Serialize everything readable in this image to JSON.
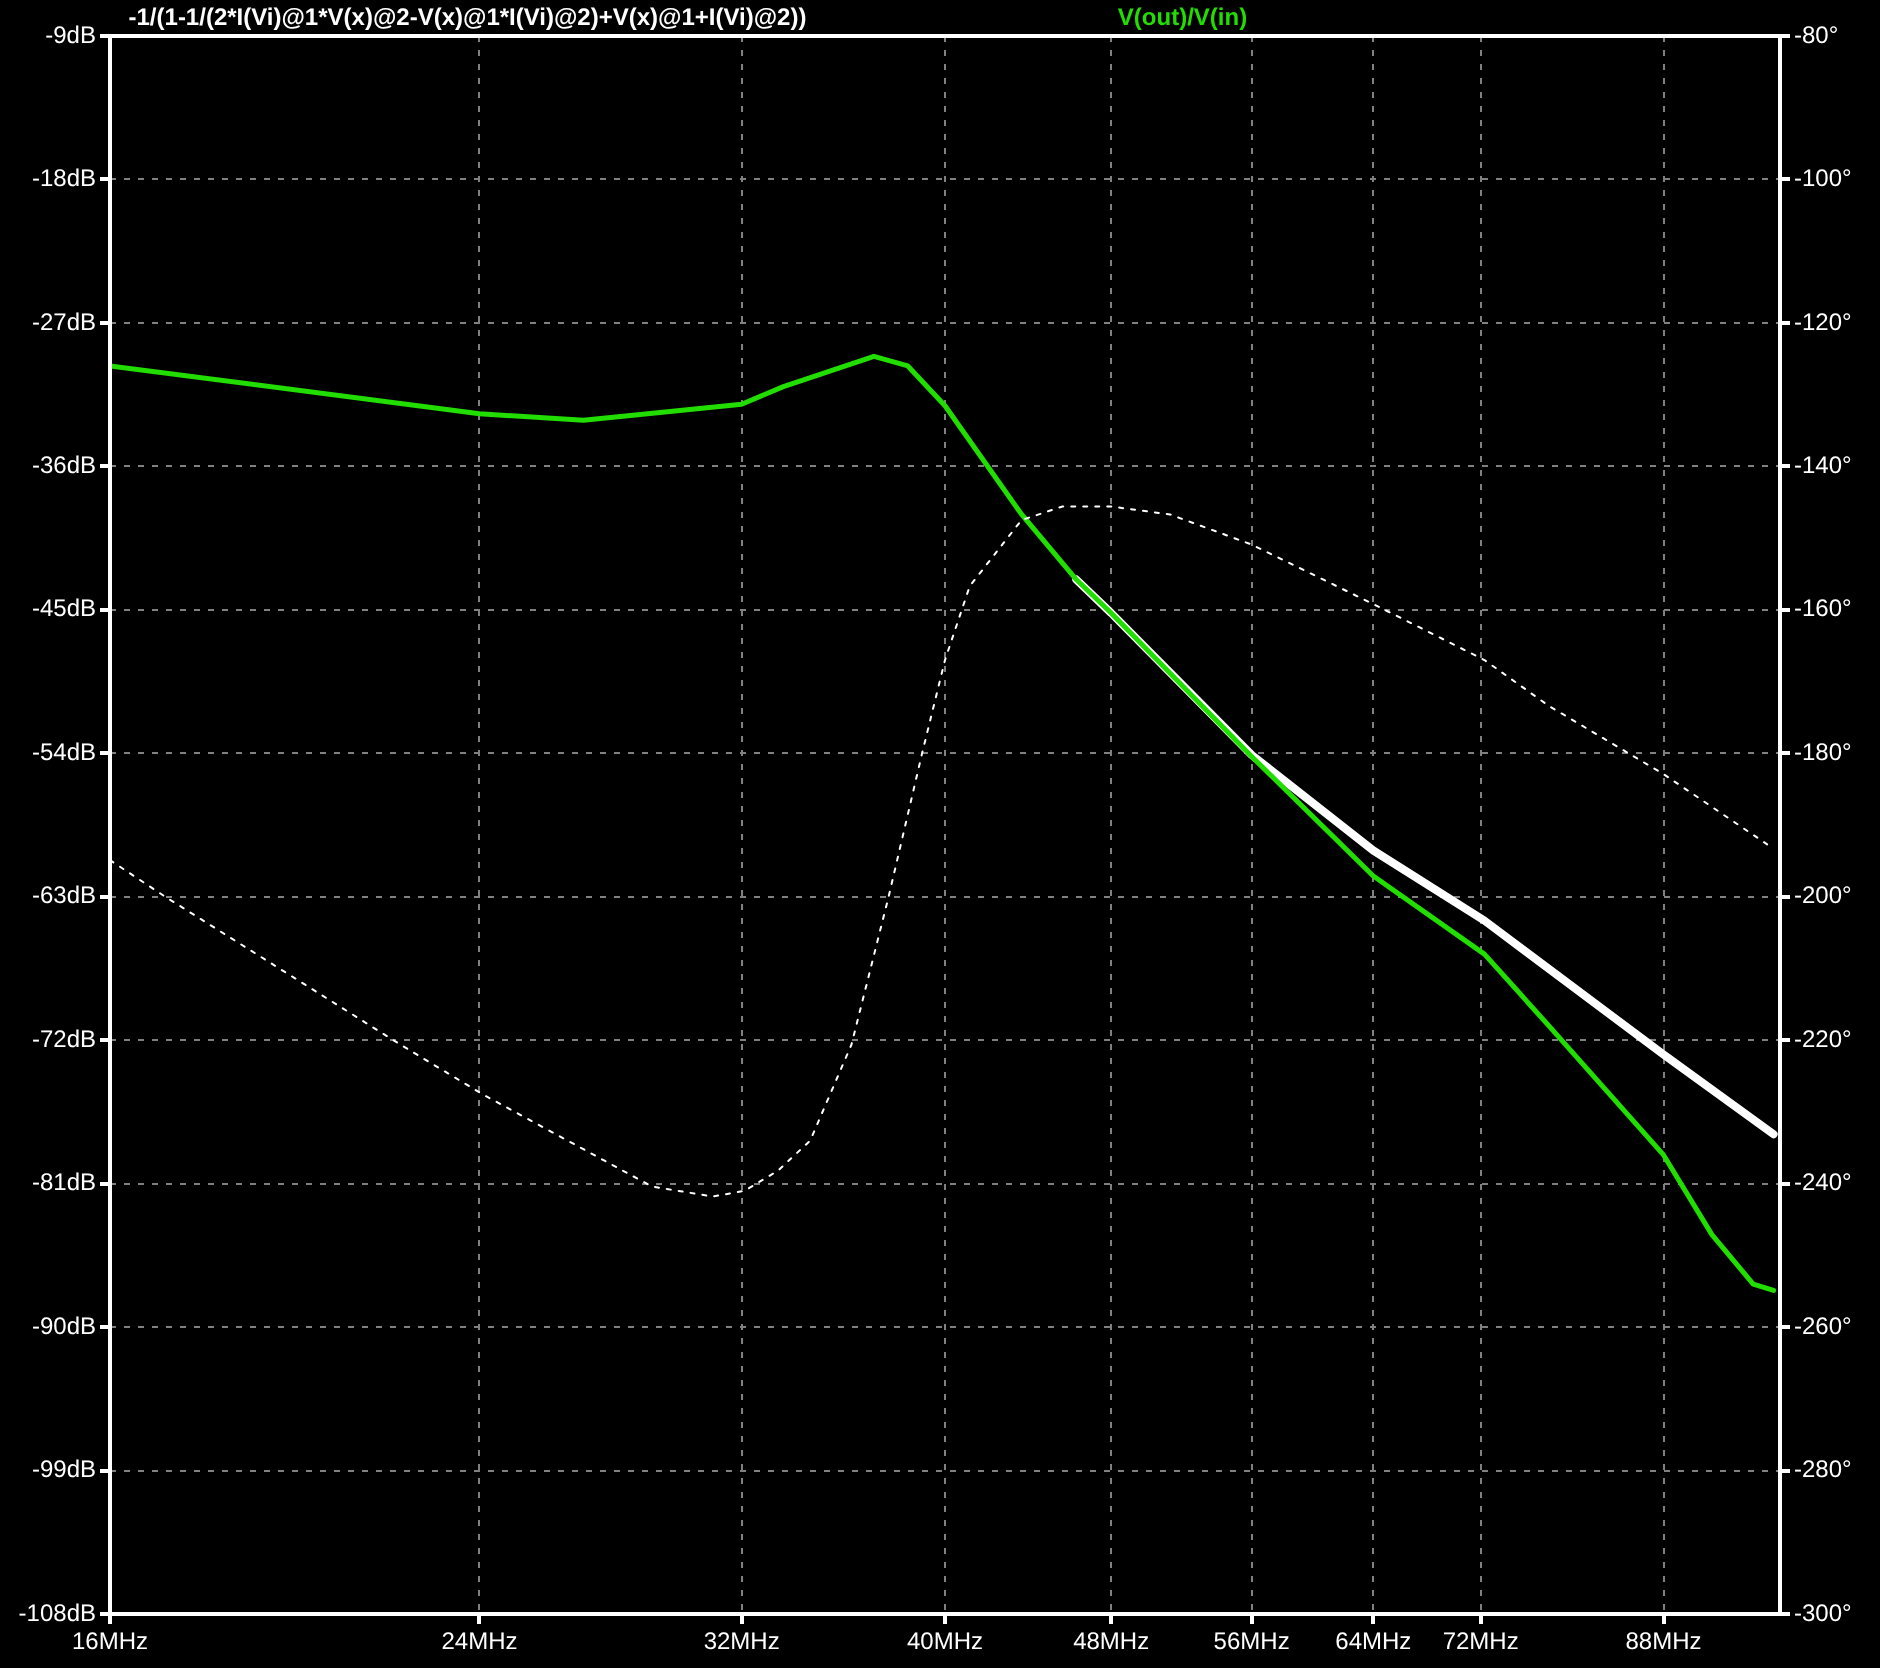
{
  "chart_data": {
    "type": "line",
    "log": "x",
    "grid": true,
    "legend": "top",
    "xlim": [
      16,
      100
    ],
    "xticks": [
      {
        "value": 16,
        "label": "16MHz"
      },
      {
        "value": 24,
        "label": "24MHz"
      },
      {
        "value": 32,
        "label": "32MHz"
      },
      {
        "value": 40,
        "label": "40MHz"
      },
      {
        "value": 48,
        "label": "48MHz"
      },
      {
        "value": 56,
        "label": "56MHz"
      },
      {
        "value": 64,
        "label": "64MHz"
      },
      {
        "value": 72,
        "label": "72MHz"
      },
      {
        "value": 88,
        "label": "88MHz"
      }
    ],
    "ylim": [
      -108,
      -9
    ],
    "yticks": [
      {
        "value": -9,
        "label": "-9dB"
      },
      {
        "value": -18,
        "label": "-18dB"
      },
      {
        "value": -27,
        "label": "-27dB"
      },
      {
        "value": -36,
        "label": "-36dB"
      },
      {
        "value": -45,
        "label": "-45dB"
      },
      {
        "value": -54,
        "label": "-54dB"
      },
      {
        "value": -63,
        "label": "-63dB"
      },
      {
        "value": -72,
        "label": "-72dB"
      },
      {
        "value": -81,
        "label": "-81dB"
      },
      {
        "value": -90,
        "label": "-90dB"
      },
      {
        "value": -99,
        "label": "-99dB"
      },
      {
        "value": -108,
        "label": "-108dB"
      }
    ],
    "y2lim": [
      -300,
      -80
    ],
    "y2ticks": [
      {
        "value": -80,
        "label": "-80°"
      },
      {
        "value": -100,
        "label": "-100°"
      },
      {
        "value": -120,
        "label": "-120°"
      },
      {
        "value": -140,
        "label": "-140°"
      },
      {
        "value": -160,
        "label": "-160°"
      },
      {
        "value": -180,
        "label": "-180°"
      },
      {
        "value": -200,
        "label": "-200°"
      },
      {
        "value": -220,
        "label": "-220°"
      },
      {
        "value": -240,
        "label": "-240°"
      },
      {
        "value": -260,
        "label": "-260°"
      },
      {
        "value": -280,
        "label": "-280°"
      },
      {
        "value": -300,
        "label": "-300°"
      }
    ],
    "series": [
      {
        "name": "-1/(1-1/(2*I(Vi)@1*V(x)@2-V(x)@1*I(Vi)@2)+V(x)@1+I(Vi)@2))",
        "color": "#ffffff",
        "line_style": "solid",
        "x": [
          46.2,
          48,
          56,
          64,
          72.3,
          88,
          99.3
        ],
        "values": [
          -43.1,
          -45.2,
          -54.1,
          -60.1,
          -64.5,
          -72.9,
          -77.9
        ]
      },
      {
        "name": "V(out)/V(in)",
        "color": "#22dd00",
        "line_style": "solid",
        "x": [
          16,
          24,
          26.9,
          32,
          33.5,
          37,
          38.4,
          40,
          43.5,
          46.2,
          48,
          56,
          64,
          72.3,
          77.6,
          88,
          92.8,
          97.1,
          99.3
        ],
        "values": [
          -29.7,
          -32.7,
          -33.1,
          -32.1,
          -31,
          -29.1,
          -29.7,
          -32.2,
          -39,
          -43.1,
          -45.2,
          -54.2,
          -61.7,
          -66.6,
          -71.1,
          -79.2,
          -84.2,
          -87.3,
          -87.7
        ]
      },
      {
        "color": "#ffffff",
        "line_style": "dashed",
        "axis": "y2",
        "x": [
          16,
          17,
          22,
          24.1,
          29,
          31,
          32.1,
          33.3,
          34.5,
          36.1,
          37.6,
          39,
          40,
          41.1,
          43.5,
          45.5,
          48,
          51.2,
          56,
          64,
          72.3,
          77.6,
          88,
          98.6
        ],
        "values": [
          -194.9,
          -200,
          -220.6,
          -227.6,
          -240.4,
          -241.8,
          -241,
          -238.2,
          -234,
          -220.6,
          -200,
          -180.1,
          -167,
          -156.7,
          -147.5,
          -145.6,
          -145.6,
          -146.7,
          -150.9,
          -159.2,
          -167,
          -173.4,
          -182.9,
          -192.7
        ]
      }
    ]
  }
}
